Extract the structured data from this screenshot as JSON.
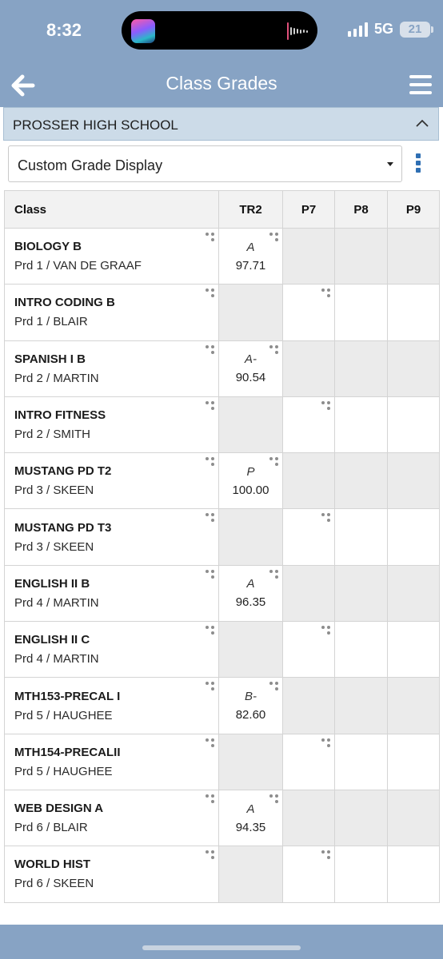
{
  "status_bar": {
    "time": "8:32",
    "network": "5G",
    "battery": "21"
  },
  "header": {
    "title": "Class Grades",
    "icons": [
      "back-arrow-icon",
      "hamburger-menu-icon"
    ],
    "bg_color": "#87a3c4"
  },
  "school": {
    "name": "PROSSER HIGH SCHOOL"
  },
  "display_select": {
    "value": "Custom Grade Display"
  },
  "table": {
    "columns": [
      "Class",
      "TR2",
      "P7",
      "P8",
      "P9"
    ],
    "rows": [
      {
        "course": "BIOLOGY B",
        "period": "Prd 1 / VAN DE GRAAF",
        "letter": "A",
        "score": "97.71"
      },
      {
        "course": "INTRO CODING B",
        "period": "Prd 1 / BLAIR",
        "letter": "",
        "score": ""
      },
      {
        "course": "SPANISH I B",
        "period": "Prd 2 / MARTIN",
        "letter": "A-",
        "score": "90.54"
      },
      {
        "course": "INTRO FITNESS",
        "period": "Prd 2 / SMITH",
        "letter": "",
        "score": ""
      },
      {
        "course": "MUSTANG PD T2",
        "period": "Prd 3 / SKEEN",
        "letter": "P",
        "score": "100.00"
      },
      {
        "course": "MUSTANG PD T3",
        "period": "Prd 3 / SKEEN",
        "letter": "",
        "score": ""
      },
      {
        "course": "ENGLISH II B",
        "period": "Prd 4 / MARTIN",
        "letter": "A",
        "score": "96.35"
      },
      {
        "course": "ENGLISH II C",
        "period": "Prd 4 / MARTIN",
        "letter": "",
        "score": ""
      },
      {
        "course": "MTH153-PRECAL I",
        "period": "Prd 5 / HAUGHEE",
        "letter": "B-",
        "score": "82.60"
      },
      {
        "course": "MTH154-PRECALII",
        "period": "Prd 5 / HAUGHEE",
        "letter": "",
        "score": ""
      },
      {
        "course": "WEB DESIGN A",
        "period": "Prd 6 / BLAIR",
        "letter": "A",
        "score": "94.35"
      },
      {
        "course": "WORLD HIST",
        "period": "Prd 6 / SKEEN",
        "letter": "",
        "score": ""
      }
    ]
  }
}
